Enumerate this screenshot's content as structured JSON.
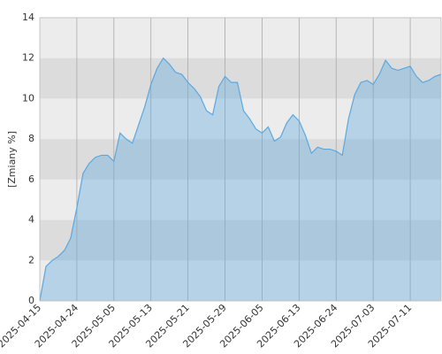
{
  "chart_data": {
    "type": "area",
    "y_label": "[Zmiany %]",
    "categories": [
      "2025-04-15",
      null,
      null,
      null,
      null,
      null,
      "2025-04-24",
      null,
      null,
      null,
      null,
      null,
      "2025-05-05",
      null,
      null,
      null,
      null,
      null,
      "2025-05-13",
      null,
      null,
      null,
      null,
      null,
      "2025-05-21",
      null,
      null,
      null,
      null,
      null,
      "2025-05-29",
      null,
      null,
      null,
      null,
      null,
      "2025-06-05",
      null,
      null,
      null,
      null,
      null,
      "2025-06-13",
      null,
      null,
      null,
      null,
      null,
      "2025-06-24",
      null,
      null,
      null,
      null,
      null,
      "2025-07-03",
      null,
      null,
      null,
      null,
      null,
      "2025-07-11",
      null,
      null,
      null,
      null,
      null
    ],
    "values": [
      0,
      1.7,
      2.0,
      2.2,
      2.5,
      3.1,
      4.6,
      6.3,
      6.8,
      7.1,
      7.2,
      7.2,
      6.9,
      8.3,
      8.0,
      7.8,
      8.7,
      9.6,
      10.7,
      11.5,
      12.0,
      11.7,
      11.3,
      11.2,
      10.8,
      10.5,
      10.1,
      9.4,
      9.2,
      10.6,
      11.1,
      10.8,
      10.8,
      9.4,
      9.0,
      8.5,
      8.3,
      8.6,
      7.9,
      8.1,
      8.8,
      9.2,
      8.9,
      8.2,
      7.3,
      7.6,
      7.5,
      7.5,
      7.4,
      7.2,
      9.0,
      10.2,
      10.8,
      10.9,
      10.7,
      11.2,
      11.9,
      11.5,
      11.4,
      11.5,
      11.6,
      11.1,
      10.8,
      10.9,
      11.1,
      11.2
    ],
    "color": "#5ba8e0",
    "ylim": [
      0,
      14
    ],
    "yticks": [
      0,
      2,
      4,
      6,
      8,
      10,
      12,
      14
    ],
    "grid": true
  }
}
